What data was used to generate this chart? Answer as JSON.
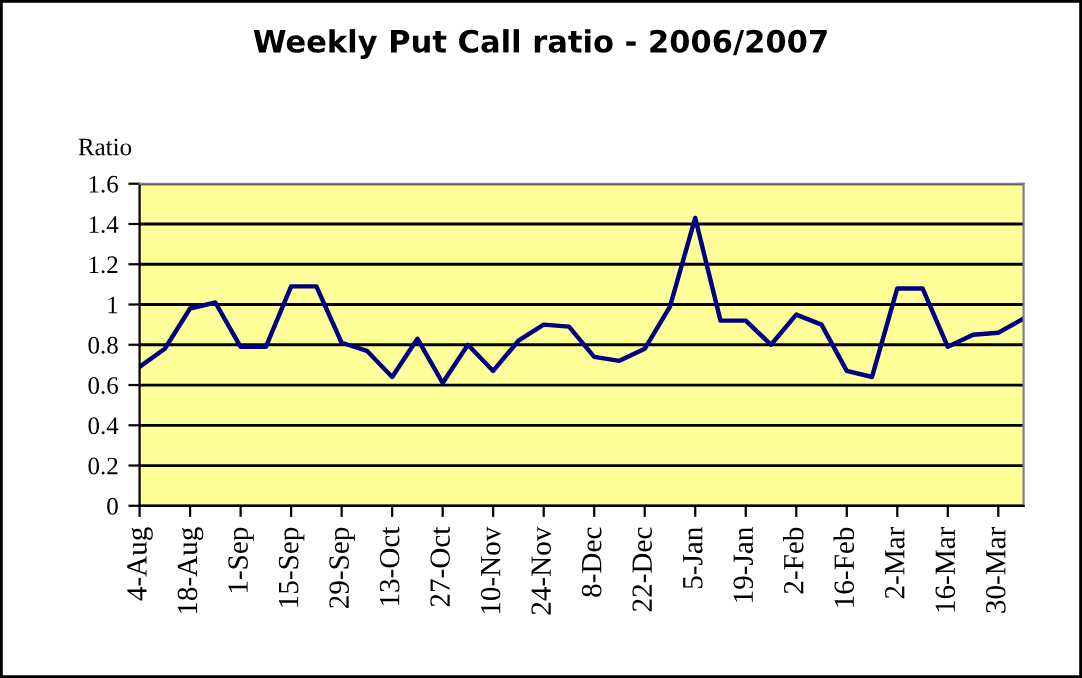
{
  "chart_data": {
    "type": "line",
    "title": "Weekly Put Call ratio - 2006/2007",
    "ylabel": "Ratio",
    "categories": [
      "4-Aug",
      null,
      "18-Aug",
      null,
      "1-Sep",
      null,
      "15-Sep",
      null,
      "29-Sep",
      null,
      "13-Oct",
      null,
      "27-Oct",
      null,
      "10-Nov",
      null,
      "24-Nov",
      null,
      "8-Dec",
      null,
      "22-Dec",
      null,
      "5-Jan",
      null,
      "19-Jan",
      null,
      "2-Feb",
      null,
      "16-Feb",
      null,
      "2-Mar",
      null,
      "16-Mar",
      null,
      "30-Mar",
      null
    ],
    "series": [
      {
        "color": "#000080",
        "values": [
          0.69,
          0.78,
          0.98,
          1.01,
          0.79,
          0.79,
          1.09,
          1.09,
          0.81,
          0.77,
          0.64,
          0.83,
          0.61,
          0.8,
          0.67,
          0.82,
          0.9,
          0.89,
          0.74,
          0.72,
          0.78,
          0.99,
          1.43,
          0.92,
          0.92,
          0.8,
          0.95,
          0.9,
          0.67,
          0.64,
          1.08,
          1.08,
          0.79,
          0.85,
          0.86,
          0.93
        ]
      }
    ],
    "ylim": [
      0,
      1.6
    ],
    "yticks": [
      0,
      0.2,
      0.4,
      0.6,
      0.8,
      1,
      1.2,
      1.4,
      1.6
    ],
    "grid": "y",
    "legend": false,
    "marker": "none",
    "line_style": "solid"
  }
}
